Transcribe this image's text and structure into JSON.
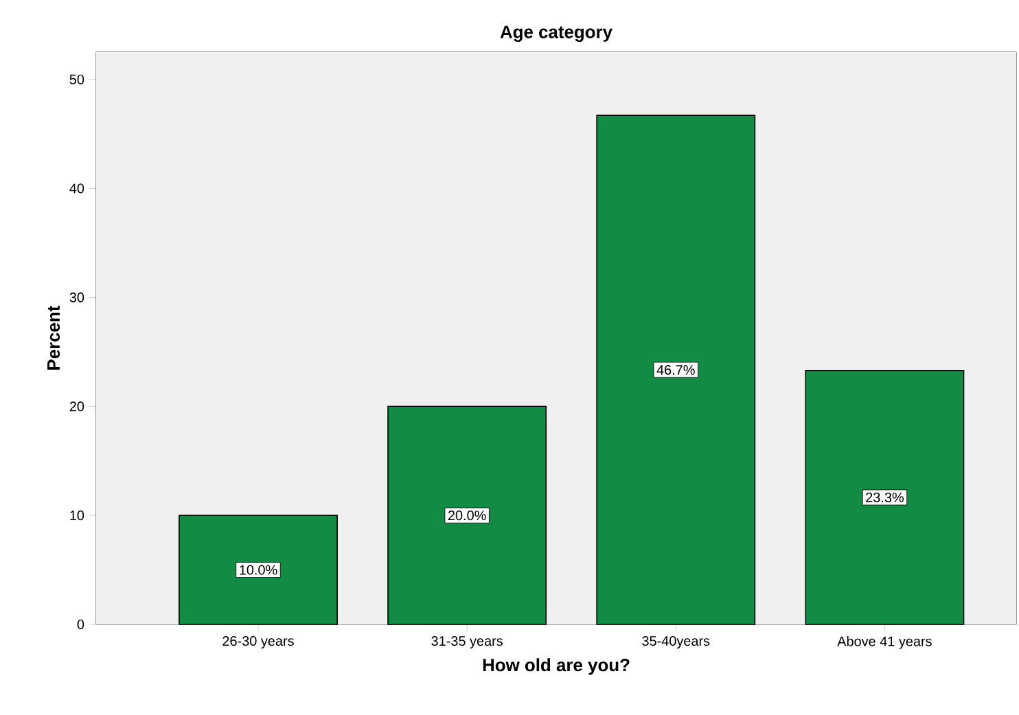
{
  "chart_data": {
    "type": "bar",
    "title": "Age category",
    "xlabel": "How old are you?",
    "ylabel": "Percent",
    "categories": [
      "26-30 years",
      "31-35 years",
      "35-40years",
      "Above 41 years"
    ],
    "values": [
      10.0,
      20.0,
      46.7,
      23.3
    ],
    "value_labels": [
      "10.0%",
      "20.0%",
      "46.7%",
      "23.3%"
    ],
    "color": "#128c45",
    "ylim": [
      0,
      52.5
    ],
    "yticks": [
      0,
      10,
      20,
      30,
      40,
      50
    ]
  }
}
